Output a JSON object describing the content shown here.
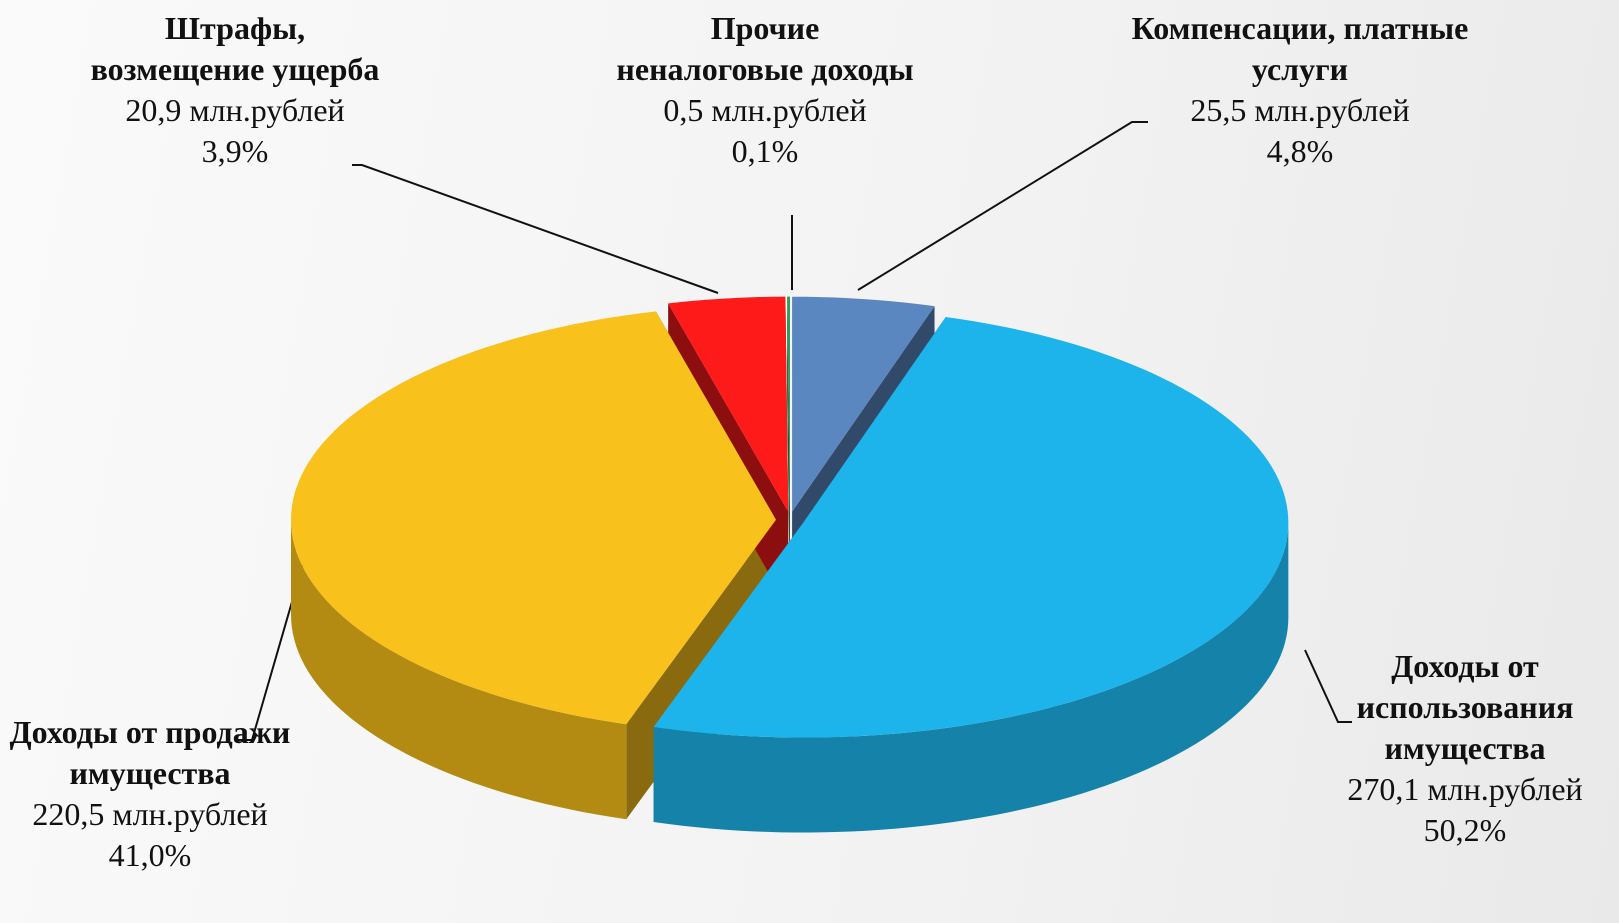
{
  "chart_data": {
    "type": "pie3d",
    "categories": [
      "Компенсации, платные услуги",
      "Доходы от использования имущества",
      "Доходы от продажи имущества",
      "Штрафы, возмещение ущерба",
      "Прочие неналоговые доходы"
    ],
    "values": [
      25.5,
      270.1,
      220.5,
      20.9,
      0.5
    ],
    "value_labels": [
      "25,5 млн.рублей",
      "270,1 млн.рублей",
      "220,5 млн.рублей",
      "20,9 млн.рублей",
      "0,5 млн.рублей"
    ],
    "percents": [
      4.8,
      50.2,
      41.0,
      3.9,
      0.1
    ],
    "percent_labels": [
      "4,8%",
      "50,2%",
      "41,0%",
      "3,9%",
      "0,1%"
    ],
    "colors": [
      "#5b87c0",
      "#1db4ec",
      "#f9c11b",
      "#ff1a1a",
      "#2e9a5a"
    ]
  }
}
